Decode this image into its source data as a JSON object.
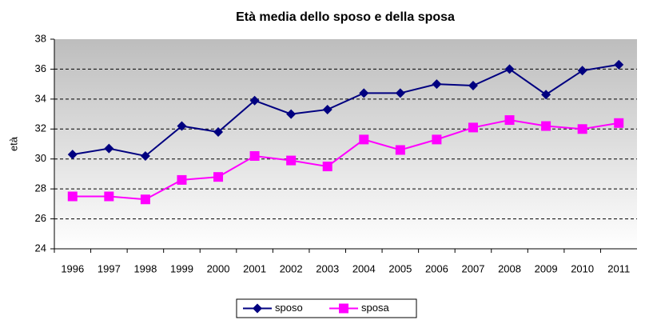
{
  "chart_data": {
    "type": "line",
    "title": "Età media dello sposo e della sposa",
    "y_label": "età",
    "categories": [
      "1996",
      "1997",
      "1998",
      "1999",
      "2000",
      "2001",
      "2002",
      "2003",
      "2004",
      "2005",
      "2006",
      "2007",
      "2008",
      "2009",
      "2010",
      "2011"
    ],
    "series": [
      {
        "name": "sposo",
        "color": "#000080",
        "marker": "diamond",
        "values": [
          30.3,
          30.7,
          30.2,
          32.2,
          31.8,
          33.9,
          33.0,
          33.3,
          34.4,
          34.4,
          35.0,
          34.9,
          36.0,
          34.3,
          35.9,
          36.3
        ]
      },
      {
        "name": "sposa",
        "color": "#ff00ff",
        "marker": "square",
        "values": [
          27.5,
          27.5,
          27.3,
          28.6,
          28.8,
          30.2,
          29.9,
          29.5,
          31.3,
          30.6,
          31.3,
          32.1,
          32.6,
          32.2,
          32.0,
          32.4
        ]
      }
    ],
    "ylim": [
      24,
      38
    ],
    "yticks": [
      24,
      26,
      28,
      30,
      32,
      34,
      36,
      38
    ],
    "grid": true,
    "legend": "bottom"
  }
}
